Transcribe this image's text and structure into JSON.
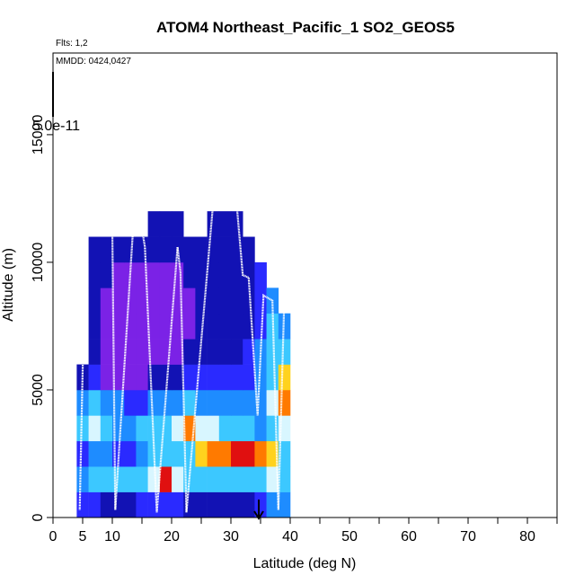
{
  "chart_data": {
    "type": "curtain",
    "title": "ATOM4 Northeast_Pacific_1 SO2_GEOS5",
    "annotations": [
      "Flts: 1,2",
      "MMDD: 0424,0427",
      "5.0e-11"
    ],
    "x_label": "Latitude (deg N)",
    "y_label": "Altitude (m)",
    "xlim": [
      0,
      85
    ],
    "ylim": [
      0,
      18200
    ],
    "xticks": [
      0,
      5,
      10,
      20,
      30,
      40,
      50,
      60,
      70,
      80
    ],
    "xticks_minor": [
      15,
      25,
      35,
      45,
      55,
      65,
      75,
      85
    ],
    "yticks": [
      0,
      5000,
      10000,
      15000
    ],
    "colors": [
      "#7b22e6",
      "#1212b4",
      "#2a2aff",
      "#1e8cff",
      "#3cc8ff",
      "#d8f6ff",
      "#ffd21e",
      "#ff7a00",
      "#e01010"
    ],
    "lat_edges": [
      4,
      6,
      8,
      10,
      12,
      14,
      16,
      18,
      20,
      22,
      24,
      26,
      28,
      30,
      32,
      34,
      36,
      38,
      40
    ],
    "alt_edges": [
      0,
      1000,
      2000,
      3000,
      4000,
      5000,
      6000,
      7000,
      8000,
      9000,
      10000,
      11000,
      12000
    ],
    "values": [
      [
        2,
        2,
        1,
        1,
        1,
        2,
        2,
        2,
        2,
        1,
        1,
        1,
        1,
        1,
        1,
        2,
        3,
        3
      ],
      [
        3,
        4,
        4,
        4,
        4,
        4,
        5,
        8,
        5,
        4,
        4,
        4,
        4,
        4,
        4,
        4,
        5,
        4
      ],
      [
        2,
        3,
        3,
        2,
        2,
        3,
        4,
        4,
        4,
        4,
        6,
        7,
        7,
        8,
        8,
        7,
        6,
        4
      ],
      [
        4,
        5,
        4,
        3,
        3,
        4,
        4,
        4,
        5,
        7,
        5,
        5,
        4,
        4,
        4,
        3,
        4,
        5
      ],
      [
        3,
        4,
        3,
        3,
        2,
        2,
        3,
        3,
        3,
        4,
        3,
        3,
        3,
        3,
        3,
        3,
        5,
        7
      ],
      [
        1,
        2,
        0,
        0,
        0,
        0,
        1,
        1,
        1,
        2,
        2,
        2,
        2,
        2,
        2,
        3,
        4,
        6
      ],
      [
        null,
        1,
        0,
        0,
        0,
        0,
        0,
        0,
        0,
        1,
        1,
        1,
        1,
        1,
        2,
        3,
        4,
        4
      ],
      [
        null,
        1,
        0,
        0,
        0,
        0,
        0,
        0,
        0,
        0,
        1,
        1,
        1,
        1,
        1,
        2,
        4,
        3
      ],
      [
        null,
        1,
        0,
        0,
        0,
        0,
        0,
        0,
        0,
        0,
        1,
        1,
        1,
        1,
        1,
        2,
        3,
        null
      ],
      [
        null,
        1,
        1,
        0,
        0,
        0,
        0,
        0,
        0,
        1,
        1,
        1,
        1,
        1,
        1,
        2,
        null,
        null
      ],
      [
        null,
        1,
        1,
        1,
        1,
        1,
        1,
        1,
        1,
        1,
        1,
        1,
        1,
        1,
        1,
        null,
        null,
        null
      ],
      [
        null,
        null,
        null,
        null,
        null,
        null,
        1,
        1,
        1,
        null,
        null,
        1,
        1,
        1,
        null,
        null,
        null,
        null
      ]
    ],
    "track": {
      "lat": [
        4.5,
        5.5,
        10,
        10.5,
        13.5,
        15,
        15.5,
        17.5,
        21,
        21.5,
        22.5,
        27,
        31,
        32,
        33,
        34.5,
        35.5,
        37,
        38,
        39
      ],
      "alt": [
        300,
        11300,
        11300,
        300,
        11300,
        11300,
        10600,
        200,
        10600,
        9600,
        200,
        12300,
        12200,
        9500,
        9400,
        4000,
        8700,
        8500,
        300,
        8500
      ]
    }
  }
}
